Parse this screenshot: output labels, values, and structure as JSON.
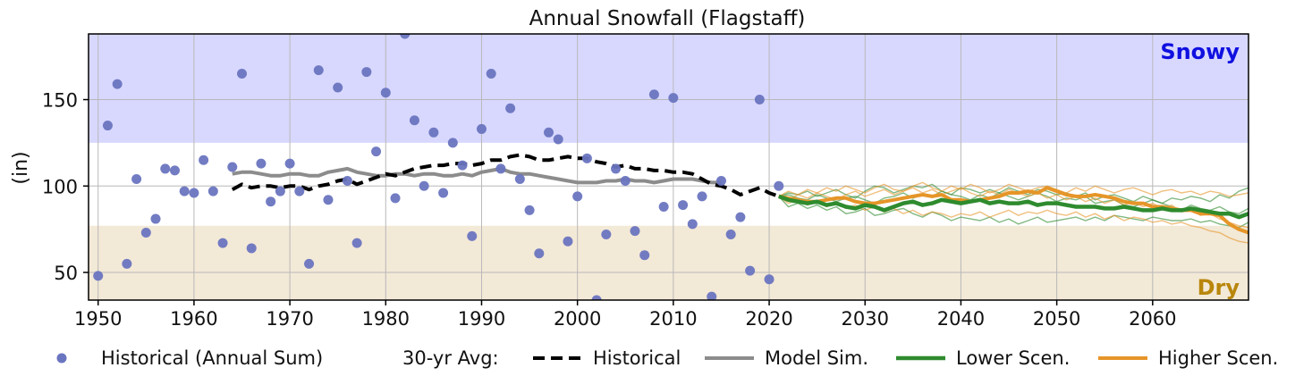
{
  "chart_data": {
    "type": "scatter",
    "title": "Annual Snowfall (Flagstaff)",
    "xlabel": "",
    "ylabel": "(in)",
    "xlim": [
      1949,
      2070
    ],
    "ylim": [
      34,
      188
    ],
    "xticks": [
      1950,
      1960,
      1970,
      1980,
      1990,
      2000,
      2010,
      2020,
      2030,
      2040,
      2050,
      2060
    ],
    "yticks": [
      50,
      100,
      150
    ],
    "grid": true,
    "bands": [
      {
        "name": "Snowy",
        "from": 125,
        "to": 188,
        "color": "#d8d8ff",
        "label_color": "#1010e0"
      },
      {
        "name": "Dry",
        "from": 34,
        "to": 77,
        "color": "#f3e9d7",
        "label_color": "#b8860b"
      }
    ],
    "historical_annual": {
      "name": "Historical (Annual Sum)",
      "color": "#6a75c0",
      "x": [
        1950,
        1951,
        1952,
        1953,
        1954,
        1955,
        1956,
        1957,
        1958,
        1959,
        1960,
        1961,
        1962,
        1963,
        1964,
        1965,
        1966,
        1967,
        1968,
        1969,
        1970,
        1971,
        1972,
        1973,
        1974,
        1975,
        1976,
        1977,
        1978,
        1979,
        1980,
        1981,
        1982,
        1983,
        1984,
        1985,
        1986,
        1987,
        1988,
        1989,
        1990,
        1991,
        1992,
        1993,
        1994,
        1995,
        1996,
        1997,
        1998,
        1999,
        2000,
        2001,
        2002,
        2003,
        2004,
        2005,
        2006,
        2007,
        2008,
        2009,
        2010,
        2011,
        2012,
        2013,
        2014,
        2015,
        2016,
        2017,
        2018,
        2019,
        2020,
        2021
      ],
      "y": [
        48,
        135,
        159,
        55,
        104,
        73,
        81,
        110,
        109,
        97,
        96,
        115,
        97,
        67,
        111,
        165,
        64,
        113,
        91,
        97,
        113,
        97,
        55,
        167,
        92,
        157,
        103,
        67,
        166,
        120,
        154,
        93,
        188,
        138,
        100,
        131,
        96,
        125,
        112,
        71,
        133,
        165,
        110,
        145,
        104,
        86,
        61,
        131,
        127,
        68,
        94,
        116,
        34,
        72,
        110,
        103,
        74,
        60,
        153,
        88,
        151,
        89,
        78,
        94,
        36,
        103,
        72,
        82,
        51,
        150,
        46,
        100
      ]
    },
    "avg_label": "30-yr Avg:",
    "historical_avg": {
      "name": "Historical",
      "color": "#000000",
      "x": [
        1964,
        1965,
        1966,
        1967,
        1968,
        1969,
        1970,
        1971,
        1972,
        1973,
        1974,
        1975,
        1976,
        1977,
        1978,
        1979,
        1980,
        1981,
        1982,
        1983,
        1984,
        1985,
        1986,
        1987,
        1988,
        1989,
        1990,
        1991,
        1992,
        1993,
        1994,
        1995,
        1996,
        1997,
        1998,
        1999,
        2000,
        2001,
        2002,
        2003,
        2004,
        2005,
        2006,
        2007,
        2008,
        2009,
        2010,
        2011,
        2012,
        2013,
        2014,
        2015,
        2016,
        2017,
        2018,
        2019,
        2020,
        2021
      ],
      "y": [
        98,
        101,
        99,
        100,
        100,
        99,
        100,
        100,
        98,
        100,
        101,
        103,
        104,
        101,
        103,
        105,
        107,
        106,
        108,
        110,
        111,
        112,
        112,
        113,
        113,
        112,
        113,
        115,
        115,
        117,
        118,
        117,
        115,
        115,
        116,
        117,
        116,
        116,
        114,
        113,
        111,
        112,
        110,
        110,
        109,
        109,
        108,
        108,
        107,
        104,
        101,
        100,
        98,
        95,
        97,
        99,
        96,
        94
      ]
    },
    "series": [
      {
        "name": "Model Sim.",
        "color": "#8c8c8c",
        "x": [
          1964,
          1965,
          1966,
          1967,
          1968,
          1969,
          1970,
          1971,
          1972,
          1973,
          1974,
          1975,
          1976,
          1977,
          1978,
          1979,
          1980,
          1981,
          1982,
          1983,
          1984,
          1985,
          1986,
          1987,
          1988,
          1989,
          1990,
          1991,
          1992,
          1993,
          1994,
          1995,
          1996,
          1997,
          1998,
          1999,
          2000,
          2001,
          2002,
          2003,
          2004,
          2005,
          2006,
          2007,
          2008,
          2009,
          2010,
          2011,
          2012,
          2013,
          2014,
          2015
        ],
        "y": [
          107,
          108,
          108,
          107,
          106,
          106,
          107,
          107,
          106,
          106,
          108,
          109,
          110,
          108,
          107,
          106,
          106,
          107,
          107,
          106,
          107,
          107,
          106,
          106,
          107,
          106,
          108,
          109,
          110,
          108,
          107,
          107,
          106,
          105,
          104,
          103,
          102,
          102,
          102,
          103,
          103,
          104,
          103,
          103,
          102,
          103,
          104,
          104,
          104,
          103,
          102,
          102
        ]
      },
      {
        "name": "Lower Scen.",
        "color": "#2e8b2e",
        "x": [
          2021,
          2022,
          2023,
          2024,
          2025,
          2026,
          2027,
          2028,
          2029,
          2030,
          2031,
          2032,
          2033,
          2034,
          2035,
          2036,
          2037,
          2038,
          2039,
          2040,
          2041,
          2042,
          2043,
          2044,
          2045,
          2046,
          2047,
          2048,
          2049,
          2050,
          2051,
          2052,
          2053,
          2054,
          2055,
          2056,
          2057,
          2058,
          2059,
          2060,
          2061,
          2062,
          2063,
          2064,
          2065,
          2066,
          2067,
          2068,
          2069,
          2070
        ],
        "y": [
          94,
          92,
          91,
          90,
          91,
          89,
          90,
          88,
          87,
          89,
          88,
          86,
          88,
          90,
          91,
          89,
          90,
          92,
          91,
          90,
          91,
          92,
          90,
          91,
          90,
          90,
          91,
          89,
          90,
          90,
          89,
          88,
          88,
          88,
          87,
          87,
          88,
          87,
          86,
          86,
          87,
          86,
          86,
          87,
          86,
          85,
          84,
          84,
          82,
          84
        ]
      },
      {
        "name": "Higher Scen.",
        "color": "#e69528",
        "x": [
          2021,
          2022,
          2023,
          2024,
          2025,
          2026,
          2027,
          2028,
          2029,
          2030,
          2031,
          2032,
          2033,
          2034,
          2035,
          2036,
          2037,
          2038,
          2039,
          2040,
          2041,
          2042,
          2043,
          2044,
          2045,
          2046,
          2047,
          2048,
          2049,
          2050,
          2051,
          2052,
          2053,
          2054,
          2055,
          2056,
          2057,
          2058,
          2059,
          2060,
          2061,
          2062,
          2063,
          2064,
          2065,
          2066,
          2067,
          2068,
          2069,
          2070
        ],
        "y": [
          94,
          93,
          92,
          91,
          91,
          92,
          93,
          93,
          91,
          90,
          90,
          91,
          92,
          93,
          94,
          95,
          94,
          95,
          92,
          92,
          91,
          92,
          93,
          94,
          96,
          96,
          97,
          96,
          99,
          97,
          95,
          94,
          94,
          95,
          94,
          93,
          91,
          90,
          90,
          88,
          88,
          87,
          86,
          86,
          84,
          84,
          83,
          78,
          75,
          73
        ]
      }
    ],
    "ensemble": [
      {
        "color": "#2e8b2e",
        "y": [
          94,
          96,
          95,
          97,
          94,
          96,
          98,
          95,
          93,
          97,
          100,
          99,
          96,
          98,
          100,
          99,
          101,
          97,
          95,
          99,
          98,
          96,
          98,
          96,
          99,
          97,
          95,
          98,
          97,
          95,
          96,
          94,
          96,
          92,
          94,
          95,
          93,
          91,
          94,
          92,
          90,
          93,
          92,
          94,
          93,
          91,
          95,
          93,
          97,
          99
        ]
      },
      {
        "color": "#2e8b2e",
        "y": [
          94,
          88,
          90,
          87,
          89,
          86,
          88,
          84,
          85,
          87,
          83,
          84,
          86,
          87,
          84,
          82,
          85,
          83,
          80,
          82,
          81,
          80,
          82,
          79,
          81,
          78,
          80,
          82,
          79,
          80,
          81,
          82,
          80,
          82,
          80,
          83,
          82,
          81,
          80,
          82,
          81,
          80,
          80,
          81,
          79,
          80,
          78,
          77,
          76,
          79
        ]
      },
      {
        "color": "#2e8b2e",
        "y": [
          94,
          95,
          93,
          92,
          95,
          93,
          91,
          93,
          94,
          92,
          90,
          93,
          94,
          96,
          93,
          95,
          94,
          97,
          95,
          94,
          92,
          95,
          93,
          96,
          94,
          92,
          94,
          96,
          94,
          91,
          93,
          92,
          94,
          90,
          91,
          92,
          89,
          88,
          90,
          92,
          90,
          88,
          86,
          89,
          87,
          86,
          88,
          85,
          84,
          87
        ]
      },
      {
        "color": "#e69528",
        "y": [
          94,
          97,
          95,
          98,
          96,
          99,
          97,
          100,
          98,
          96,
          99,
          101,
          98,
          97,
          100,
          102,
          99,
          97,
          100,
          98,
          101,
          99,
          96,
          98,
          101,
          99,
          97,
          99,
          100,
          98,
          96,
          99,
          97,
          100,
          98,
          96,
          98,
          99,
          97,
          95,
          97,
          98,
          96,
          97,
          95,
          97,
          96,
          94,
          95,
          96
        ]
      },
      {
        "color": "#e69528",
        "y": [
          94,
          90,
          92,
          89,
          91,
          88,
          90,
          87,
          89,
          86,
          88,
          85,
          87,
          84,
          86,
          83,
          85,
          84,
          82,
          84,
          83,
          85,
          82,
          84,
          86,
          83,
          85,
          84,
          86,
          84,
          83,
          85,
          82,
          84,
          81,
          83,
          80,
          82,
          81,
          79,
          80,
          78,
          79,
          77,
          76,
          74,
          73,
          70,
          68,
          67
        ]
      },
      {
        "color": "#e69528",
        "y": [
          94,
          92,
          95,
          93,
          96,
          94,
          92,
          95,
          97,
          94,
          96,
          98,
          95,
          97,
          99,
          96,
          98,
          95,
          97,
          99,
          96,
          94,
          97,
          95,
          98,
          96,
          94,
          96,
          93,
          95,
          92,
          94,
          91,
          93,
          90,
          92,
          89,
          91,
          88,
          90,
          87,
          89,
          85,
          86,
          83,
          84,
          81,
          79,
          77,
          76
        ]
      }
    ],
    "legend_position": "bottom"
  }
}
